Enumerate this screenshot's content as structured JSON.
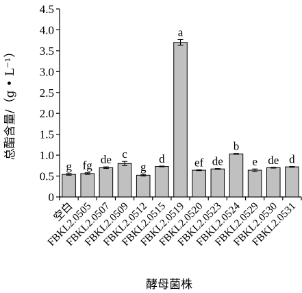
{
  "chart_data": {
    "type": "bar",
    "xlabel": "酵母菌株",
    "ylabel": "总酯含量/（g • L⁻¹）",
    "ylim": [
      0,
      4.5
    ],
    "yticks": [
      "0",
      "0.5",
      "1.0",
      "1.5",
      "2.0",
      "2.5",
      "3.0",
      "3.5",
      "4.0",
      "4.5"
    ],
    "categories": [
      "空白",
      "FBKL2.0505",
      "FBKL2.0507",
      "FBKL2.0509",
      "FBKL2.0512",
      "FBKL2.0515",
      "FBKL2.0519",
      "FBKL2.0520",
      "FBKL2.0523",
      "FBKL2.0524",
      "FBKL2.0529",
      "FBKL2.0530",
      "FBKL2.0531"
    ],
    "values": [
      0.54,
      0.56,
      0.7,
      0.8,
      0.52,
      0.73,
      3.7,
      0.64,
      0.67,
      1.03,
      0.64,
      0.7,
      0.72
    ],
    "errors": [
      0.02,
      0.02,
      0.02,
      0.05,
      0.02,
      0.01,
      0.07,
      0.01,
      0.01,
      0.01,
      0.03,
      0.01,
      0.01
    ],
    "significance": [
      "g",
      "fg",
      "de",
      "c",
      "g",
      "d",
      "a",
      "ef",
      "de",
      "b",
      "e",
      "de",
      "d"
    ],
    "bar_color": "#c0c0c0",
    "grid": false,
    "legend": "none"
  }
}
